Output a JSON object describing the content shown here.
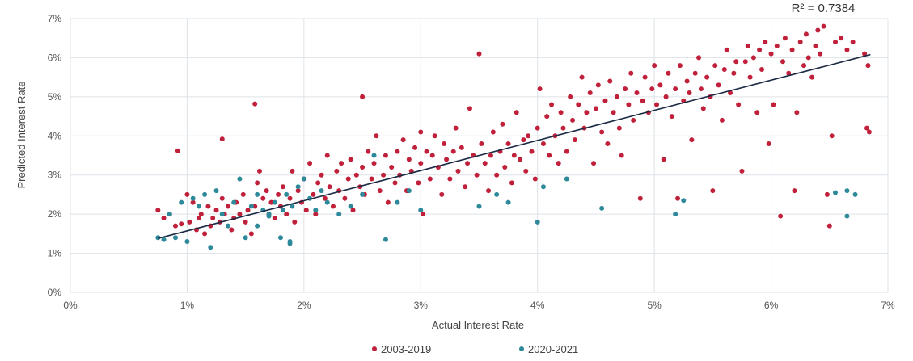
{
  "chart_data": {
    "type": "scatter",
    "xlabel": "Actual Interest Rate",
    "ylabel": "Predicted Interest Rate",
    "xlim": [
      0,
      7
    ],
    "ylim": [
      0,
      7
    ],
    "x_ticks": [
      "0%",
      "1%",
      "2%",
      "3%",
      "4%",
      "5%",
      "6%",
      "7%"
    ],
    "y_ticks": [
      "0%",
      "1%",
      "2%",
      "3%",
      "4%",
      "5%",
      "6%",
      "7%"
    ],
    "grid": true,
    "legend_position": "bottom",
    "annotation": "R² = 0.7384",
    "trendline": {
      "x": [
        0.75,
        6.85
      ],
      "y": [
        1.38,
        6.08
      ],
      "color": "#1b2a44"
    },
    "series": [
      {
        "name": "2003-2019",
        "color": "#c0203a",
        "points": [
          [
            0.75,
            2.1
          ],
          [
            0.8,
            1.9
          ],
          [
            0.85,
            2.0
          ],
          [
            0.9,
            1.7
          ],
          [
            0.95,
            1.75
          ],
          [
            1.0,
            2.5
          ],
          [
            1.05,
            2.3
          ],
          [
            1.02,
            1.8
          ],
          [
            1.08,
            1.6
          ],
          [
            1.1,
            1.9
          ],
          [
            1.15,
            1.5
          ],
          [
            1.12,
            2.0
          ],
          [
            1.18,
            2.2
          ],
          [
            1.2,
            1.7
          ],
          [
            1.22,
            1.9
          ],
          [
            1.25,
            2.1
          ],
          [
            1.28,
            1.8
          ],
          [
            1.3,
            2.4
          ],
          [
            1.32,
            2.0
          ],
          [
            1.35,
            2.2
          ],
          [
            1.38,
            1.6
          ],
          [
            1.4,
            1.9
          ],
          [
            1.42,
            2.3
          ],
          [
            1.45,
            2.0
          ],
          [
            1.48,
            2.5
          ],
          [
            1.5,
            1.8
          ],
          [
            1.52,
            2.1
          ],
          [
            1.55,
            1.5
          ],
          [
            1.58,
            2.2
          ],
          [
            1.6,
            2.8
          ],
          [
            1.62,
            3.1
          ],
          [
            1.65,
            2.4
          ],
          [
            1.68,
            2.6
          ],
          [
            1.7,
            2.0
          ],
          [
            1.72,
            2.3
          ],
          [
            1.75,
            1.9
          ],
          [
            1.78,
            2.5
          ],
          [
            1.8,
            2.2
          ],
          [
            1.82,
            2.7
          ],
          [
            1.85,
            2.0
          ],
          [
            1.88,
            2.4
          ],
          [
            1.9,
            3.1
          ],
          [
            1.92,
            1.8
          ],
          [
            1.95,
            2.6
          ],
          [
            1.98,
            2.3
          ],
          [
            2.0,
            2.9
          ],
          [
            2.02,
            2.1
          ],
          [
            2.05,
            3.3
          ],
          [
            2.08,
            2.5
          ],
          [
            2.1,
            2.0
          ],
          [
            2.12,
            2.8
          ],
          [
            2.15,
            3.0
          ],
          [
            2.18,
            2.4
          ],
          [
            2.2,
            3.5
          ],
          [
            2.22,
            2.7
          ],
          [
            2.25,
            2.2
          ],
          [
            2.28,
            3.1
          ],
          [
            2.3,
            2.6
          ],
          [
            2.32,
            3.3
          ],
          [
            2.35,
            2.4
          ],
          [
            2.38,
            2.9
          ],
          [
            2.4,
            3.4
          ],
          [
            2.42,
            2.1
          ],
          [
            2.45,
            3.0
          ],
          [
            2.48,
            2.7
          ],
          [
            2.5,
            3.2
          ],
          [
            2.52,
            2.5
          ],
          [
            2.55,
            3.6
          ],
          [
            2.58,
            2.9
          ],
          [
            2.6,
            3.3
          ],
          [
            2.62,
            4.0
          ],
          [
            2.65,
            2.6
          ],
          [
            2.68,
            3.0
          ],
          [
            2.7,
            3.5
          ],
          [
            2.72,
            2.3
          ],
          [
            2.75,
            3.2
          ],
          [
            2.78,
            2.8
          ],
          [
            2.8,
            3.6
          ],
          [
            2.82,
            3.0
          ],
          [
            2.85,
            3.9
          ],
          [
            2.88,
            2.6
          ],
          [
            2.9,
            3.4
          ],
          [
            2.92,
            3.1
          ],
          [
            2.95,
            3.7
          ],
          [
            2.98,
            2.8
          ],
          [
            3.0,
            3.3
          ],
          [
            3.02,
            2.0
          ],
          [
            3.05,
            3.6
          ],
          [
            3.08,
            2.9
          ],
          [
            3.1,
            3.5
          ],
          [
            3.12,
            4.0
          ],
          [
            3.15,
            3.2
          ],
          [
            3.18,
            2.5
          ],
          [
            3.2,
            3.8
          ],
          [
            3.22,
            3.4
          ],
          [
            3.25,
            2.9
          ],
          [
            3.28,
            3.6
          ],
          [
            3.3,
            4.2
          ],
          [
            3.32,
            3.1
          ],
          [
            3.35,
            3.7
          ],
          [
            3.38,
            2.7
          ],
          [
            3.4,
            3.3
          ],
          [
            3.42,
            4.7
          ],
          [
            3.45,
            3.5
          ],
          [
            3.48,
            3.0
          ],
          [
            3.5,
            6.1
          ],
          [
            3.52,
            3.8
          ],
          [
            3.55,
            3.3
          ],
          [
            3.58,
            2.6
          ],
          [
            3.6,
            3.5
          ],
          [
            3.62,
            4.1
          ],
          [
            3.65,
            3.0
          ],
          [
            3.68,
            3.6
          ],
          [
            3.7,
            4.3
          ],
          [
            3.72,
            3.2
          ],
          [
            3.75,
            3.8
          ],
          [
            3.78,
            2.8
          ],
          [
            3.8,
            3.5
          ],
          [
            3.82,
            4.6
          ],
          [
            3.85,
            3.4
          ],
          [
            3.88,
            3.9
          ],
          [
            3.9,
            3.1
          ],
          [
            3.92,
            4.0
          ],
          [
            3.95,
            3.6
          ],
          [
            3.98,
            2.9
          ],
          [
            4.0,
            4.2
          ],
          [
            4.02,
            5.2
          ],
          [
            4.05,
            3.8
          ],
          [
            4.08,
            4.5
          ],
          [
            4.1,
            3.5
          ],
          [
            4.12,
            4.8
          ],
          [
            4.15,
            4.0
          ],
          [
            4.18,
            3.3
          ],
          [
            4.2,
            4.6
          ],
          [
            4.22,
            4.2
          ],
          [
            4.25,
            3.6
          ],
          [
            4.28,
            5.0
          ],
          [
            4.3,
            4.4
          ],
          [
            4.32,
            3.9
          ],
          [
            4.35,
            4.8
          ],
          [
            4.38,
            5.5
          ],
          [
            4.4,
            4.2
          ],
          [
            4.42,
            4.6
          ],
          [
            4.45,
            5.1
          ],
          [
            4.48,
            3.3
          ],
          [
            4.5,
            4.7
          ],
          [
            4.52,
            5.3
          ],
          [
            4.55,
            4.1
          ],
          [
            4.58,
            4.9
          ],
          [
            4.6,
            3.8
          ],
          [
            4.62,
            5.4
          ],
          [
            4.65,
            4.6
          ],
          [
            4.68,
            5.0
          ],
          [
            4.7,
            4.2
          ],
          [
            4.72,
            3.5
          ],
          [
            4.75,
            5.2
          ],
          [
            4.78,
            4.8
          ],
          [
            4.8,
            5.6
          ],
          [
            4.82,
            4.4
          ],
          [
            4.85,
            5.1
          ],
          [
            4.88,
            2.4
          ],
          [
            4.9,
            4.9
          ],
          [
            4.92,
            5.5
          ],
          [
            4.95,
            4.6
          ],
          [
            4.98,
            5.2
          ],
          [
            5.0,
            5.8
          ],
          [
            5.02,
            4.8
          ],
          [
            5.05,
            5.3
          ],
          [
            5.08,
            3.4
          ],
          [
            5.1,
            5.0
          ],
          [
            5.12,
            5.6
          ],
          [
            5.15,
            4.5
          ],
          [
            5.18,
            5.2
          ],
          [
            5.2,
            2.4
          ],
          [
            5.22,
            5.8
          ],
          [
            5.25,
            4.9
          ],
          [
            5.28,
            5.4
          ],
          [
            5.3,
            5.1
          ],
          [
            5.32,
            3.9
          ],
          [
            5.35,
            5.6
          ],
          [
            5.38,
            6.0
          ],
          [
            5.4,
            5.2
          ],
          [
            5.42,
            4.7
          ],
          [
            5.45,
            5.5
          ],
          [
            5.48,
            5.0
          ],
          [
            5.5,
            2.6
          ],
          [
            5.52,
            5.8
          ],
          [
            5.55,
            5.3
          ],
          [
            5.58,
            4.4
          ],
          [
            5.6,
            5.7
          ],
          [
            5.62,
            6.2
          ],
          [
            5.65,
            5.1
          ],
          [
            5.68,
            5.6
          ],
          [
            5.7,
            5.9
          ],
          [
            5.72,
            4.8
          ],
          [
            5.75,
            3.1
          ],
          [
            5.78,
            5.9
          ],
          [
            5.8,
            6.3
          ],
          [
            5.82,
            5.5
          ],
          [
            5.85,
            6.0
          ],
          [
            5.88,
            4.6
          ],
          [
            5.9,
            6.2
          ],
          [
            5.92,
            5.7
          ],
          [
            5.95,
            6.4
          ],
          [
            5.98,
            3.8
          ],
          [
            6.0,
            6.1
          ],
          [
            6.02,
            4.8
          ],
          [
            6.05,
            6.3
          ],
          [
            6.08,
            1.95
          ],
          [
            6.1,
            5.9
          ],
          [
            6.12,
            6.5
          ],
          [
            6.15,
            5.6
          ],
          [
            6.18,
            6.2
          ],
          [
            6.2,
            2.6
          ],
          [
            6.22,
            4.6
          ],
          [
            6.25,
            6.4
          ],
          [
            6.28,
            5.8
          ],
          [
            6.3,
            6.6
          ],
          [
            6.32,
            6.0
          ],
          [
            6.35,
            5.5
          ],
          [
            6.38,
            6.3
          ],
          [
            6.4,
            6.7
          ],
          [
            6.42,
            6.1
          ],
          [
            6.45,
            6.8
          ],
          [
            6.48,
            2.5
          ],
          [
            6.5,
            1.7
          ],
          [
            6.52,
            4.0
          ],
          [
            6.55,
            6.4
          ],
          [
            6.6,
            6.5
          ],
          [
            6.65,
            6.2
          ],
          [
            6.7,
            6.4
          ],
          [
            6.8,
            6.1
          ],
          [
            6.83,
            5.8
          ],
          [
            6.82,
            4.2
          ],
          [
            6.84,
            4.1
          ],
          [
            0.92,
            3.62
          ],
          [
            1.58,
            4.82
          ],
          [
            1.3,
            3.92
          ],
          [
            2.5,
            5.0
          ],
          [
            3.0,
            4.1
          ]
        ]
      },
      {
        "name": "2020-2021",
        "color": "#2e8a9a",
        "points": [
          [
            0.75,
            1.4
          ],
          [
            0.8,
            1.35
          ],
          [
            0.85,
            2.0
          ],
          [
            0.9,
            1.4
          ],
          [
            0.95,
            2.3
          ],
          [
            1.0,
            1.3
          ],
          [
            1.05,
            2.4
          ],
          [
            1.1,
            2.2
          ],
          [
            1.15,
            2.5
          ],
          [
            1.2,
            1.15
          ],
          [
            1.25,
            2.6
          ],
          [
            1.3,
            2.0
          ],
          [
            1.35,
            1.7
          ],
          [
            1.4,
            2.3
          ],
          [
            1.45,
            2.9
          ],
          [
            1.5,
            1.4
          ],
          [
            1.55,
            2.2
          ],
          [
            1.6,
            2.5
          ],
          [
            1.65,
            2.1
          ],
          [
            1.7,
            2.0
          ],
          [
            1.75,
            2.3
          ],
          [
            1.8,
            1.4
          ],
          [
            1.85,
            2.5
          ],
          [
            1.88,
            1.3
          ],
          [
            1.9,
            2.2
          ],
          [
            1.95,
            2.7
          ],
          [
            2.0,
            2.9
          ],
          [
            2.05,
            2.4
          ],
          [
            2.1,
            2.1
          ],
          [
            2.15,
            2.6
          ],
          [
            2.2,
            2.3
          ],
          [
            2.3,
            2.0
          ],
          [
            2.4,
            2.2
          ],
          [
            2.5,
            2.5
          ],
          [
            2.6,
            3.5
          ],
          [
            2.7,
            1.35
          ],
          [
            2.8,
            2.3
          ],
          [
            2.9,
            2.6
          ],
          [
            3.0,
            2.1
          ],
          [
            3.5,
            2.2
          ],
          [
            3.65,
            2.5
          ],
          [
            3.75,
            2.3
          ],
          [
            4.0,
            1.8
          ],
          [
            4.05,
            2.7
          ],
          [
            4.25,
            2.9
          ],
          [
            4.55,
            2.15
          ],
          [
            5.18,
            2.0
          ],
          [
            5.25,
            2.35
          ],
          [
            6.55,
            2.55
          ],
          [
            6.65,
            2.6
          ],
          [
            6.65,
            1.95
          ],
          [
            6.72,
            2.5
          ],
          [
            1.88,
            1.25
          ],
          [
            1.6,
            1.7
          ],
          [
            1.7,
            1.95
          ],
          [
            1.82,
            2.1
          ]
        ]
      }
    ]
  }
}
